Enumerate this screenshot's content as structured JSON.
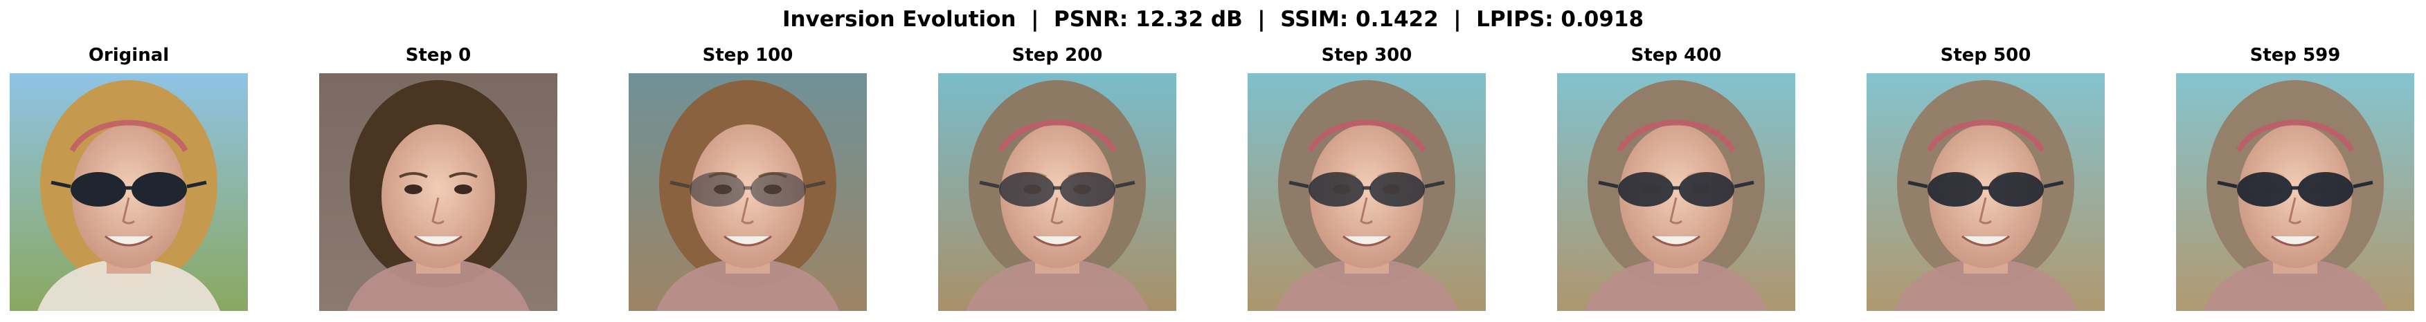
{
  "figure": {
    "title": "Inversion Evolution  |  PSNR: 12.32 dB  |  SSIM: 0.1422  |  LPIPS: 0.0918"
  },
  "panels": [
    {
      "label": "Original",
      "hair": "#c69a4e",
      "bg_top": "#8fc3e5",
      "bg_bottom": "#8aa860",
      "sunglasses": 1.0
    },
    {
      "label": "Step 0",
      "hair": "#4a3422",
      "bg_top": "#7a6a62",
      "bg_bottom": "#8b7a70",
      "sunglasses": 0.0
    },
    {
      "label": "Step 100",
      "hair": "#8a6240",
      "bg_top": "#6f9298",
      "bg_bottom": "#9d8464",
      "sunglasses": 0.25
    },
    {
      "label": "Step 200",
      "hair": "#8d7a64",
      "bg_top": "#79bccb",
      "bg_bottom": "#a99068",
      "sunglasses": 0.6
    },
    {
      "label": "Step 300",
      "hair": "#8f7c68",
      "bg_top": "#7fc0cc",
      "bg_bottom": "#ad956c",
      "sunglasses": 0.7
    },
    {
      "label": "Step 400",
      "hair": "#927d68",
      "bg_top": "#82c2ce",
      "bg_bottom": "#ae966e",
      "sunglasses": 0.8
    },
    {
      "label": "Step 500",
      "hair": "#947f6a",
      "bg_top": "#84c3ce",
      "bg_bottom": "#b0986f",
      "sunglasses": 0.85
    },
    {
      "label": "Step 599",
      "hair": "#95806b",
      "bg_top": "#85c4cf",
      "bg_bottom": "#b19970",
      "sunglasses": 0.9
    }
  ]
}
